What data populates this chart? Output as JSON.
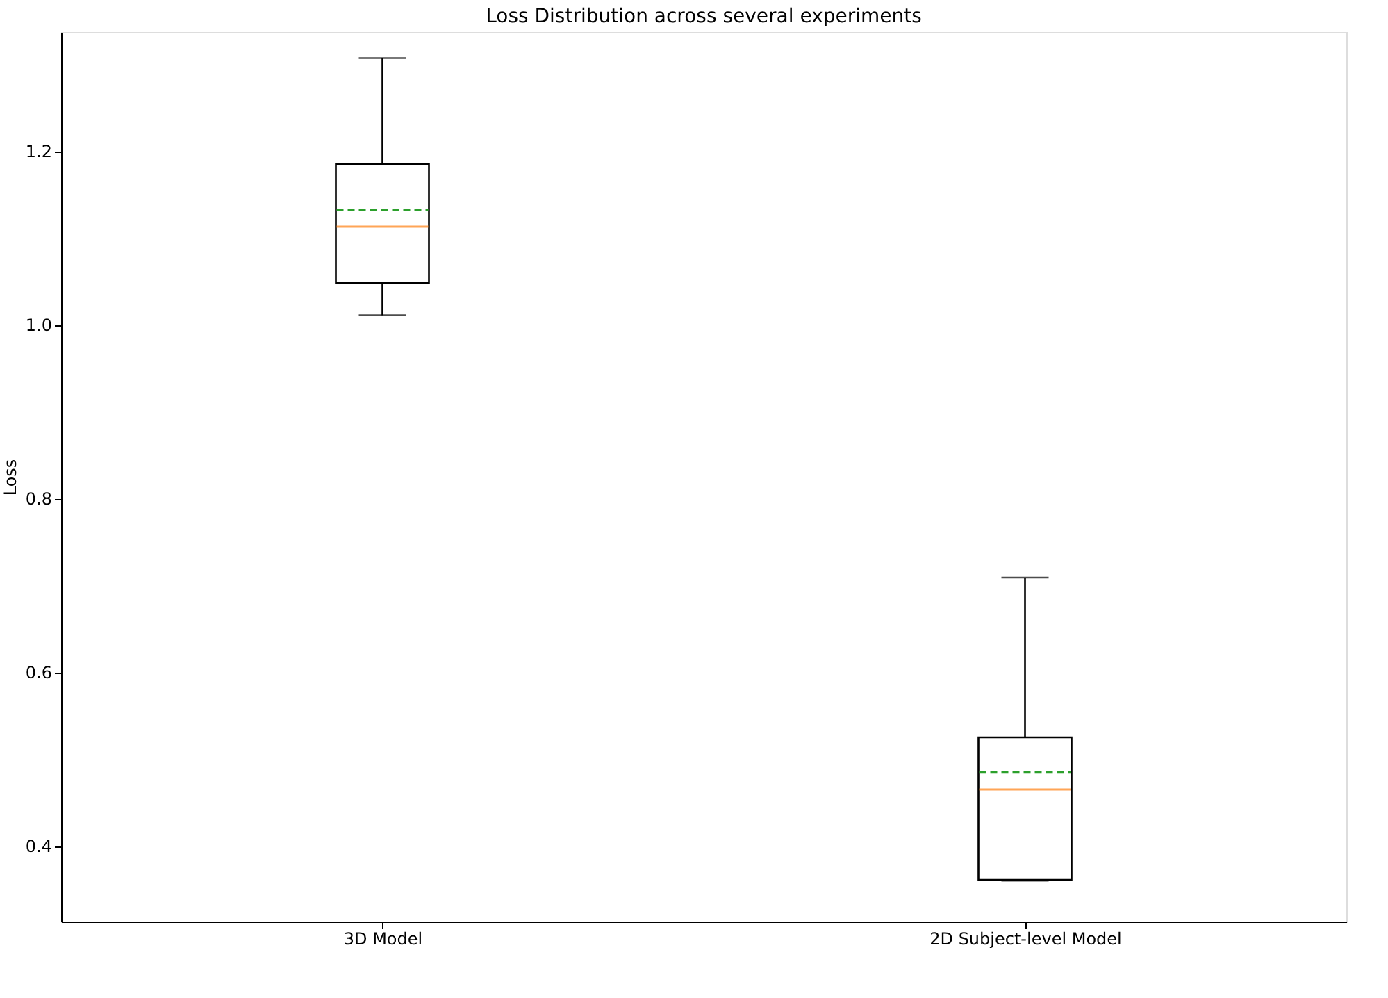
{
  "chart_data": {
    "type": "box",
    "title": "Loss Distribution across several experiments",
    "ylabel": "Loss",
    "categories": [
      "3D Model",
      "2D Subject-level Model"
    ],
    "boxes": [
      {
        "low": 1.011,
        "q1": 1.048,
        "median": 1.113,
        "q3": 1.185,
        "high": 1.307,
        "mean": 1.132
      },
      {
        "low": 0.36,
        "q1": 0.361,
        "median": 0.465,
        "q3": 0.525,
        "high": 0.709,
        "mean": 0.485
      }
    ],
    "ylim": [
      0.313,
      1.337
    ],
    "yticks": [
      0.4,
      0.6,
      0.8,
      {
        "value": 1.0,
        "label": "1.0"
      },
      1.2
    ]
  }
}
